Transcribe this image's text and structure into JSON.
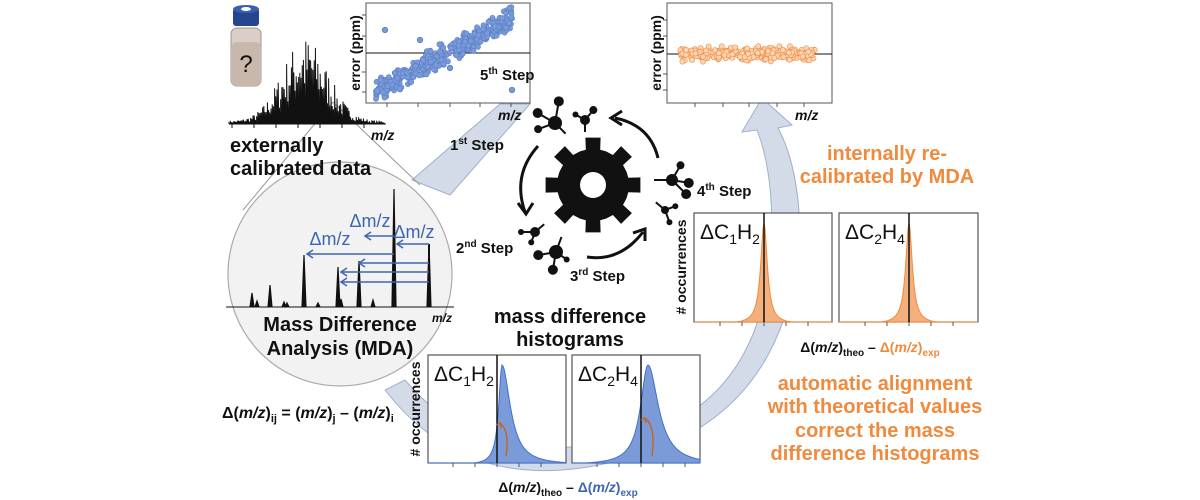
{
  "labels": {
    "external": [
      "externally",
      "calibrated data"
    ],
    "mda": [
      "Mass Difference",
      "Analysis (MDA)"
    ],
    "mdh": [
      "mass difference",
      "histograms"
    ],
    "internal": [
      "internally re-",
      "calibrated by MDA"
    ],
    "alignment": [
      "automatic alignment",
      "with theoretical values",
      "correct the mass",
      "difference histograms"
    ],
    "vial_mark": "?",
    "mz": "m/z",
    "delta_mz": "Δm/z",
    "error_axis": "error (ppm)",
    "occurrences_axis": "# occurrences"
  },
  "formula": {
    "d": "Δ(",
    "mz": "m/z",
    "close": ")",
    "ij": "ij",
    "eq": " = (",
    "close2": ")",
    "j": "j",
    "minus": " – (",
    "close3": ")",
    "i": "i"
  },
  "xlabel": {
    "d1": "Δ(",
    "mz": "m/z",
    "c1": ")",
    "theo": "theo",
    "minus": " – ",
    "d2": "Δ(",
    "c2": ")",
    "exp": "exp"
  },
  "steps": [
    {
      "num": "1",
      "sup": "st",
      "word": " Step"
    },
    {
      "num": "2",
      "sup": "nd",
      "word": " Step"
    },
    {
      "num": "3",
      "sup": "rd",
      "word": " Step"
    },
    {
      "num": "4",
      "sup": "th",
      "word": " Step"
    },
    {
      "num": "5",
      "sup": "th",
      "word": " Step"
    }
  ],
  "histograms": [
    {
      "delta": "Δ",
      "c": "C",
      "n1": "1",
      "h": "H",
      "n2": "2"
    },
    {
      "delta": "Δ",
      "c": "C",
      "n1": "2",
      "h": "H",
      "n2": "4"
    }
  ],
  "colors": {
    "blue": "#3e66b0",
    "blue_fill": "#7b9bd8",
    "orange": "#ef8a3e",
    "orange_fill": "#f4b07c",
    "band": "#d3dbe8"
  }
}
